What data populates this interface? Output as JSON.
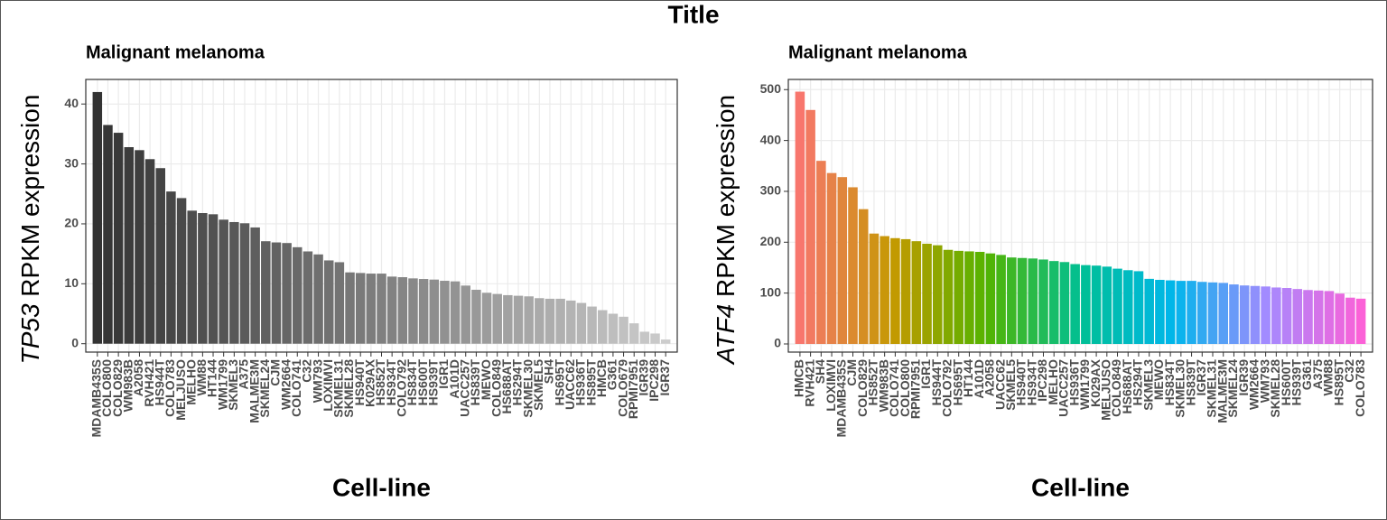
{
  "title": "Title",
  "chart_data": [
    {
      "type": "bar",
      "subtitle": "Malignant melanoma",
      "ylabel_italic": "TP53",
      "ylabel": "RPKM expression",
      "xlabel": "Cell-line",
      "categories": [
        "MDAMB435S",
        "COLO800",
        "COLO829",
        "WM983B",
        "A2058",
        "RVH421",
        "HS944T",
        "COLO783",
        "MELJUSO",
        "MELHO",
        "WM88",
        "HT144",
        "WM1799",
        "SKMEL3",
        "A375",
        "MALME3M",
        "SKMEL24",
        "CJM",
        "WM2664",
        "COLO741",
        "C32",
        "WM793",
        "LOXIMVI",
        "SKMEL31",
        "SKMEL28",
        "HS940T",
        "K029AX",
        "HS852T",
        "HS934T",
        "COLO792",
        "HS834T",
        "HS600T",
        "HS939T",
        "IGR1",
        "A101D",
        "UACC257",
        "HS839T",
        "MEWO",
        "COLO849",
        "HS688AT",
        "HS294T",
        "SKMEL30",
        "SKMEL5",
        "SH4",
        "HS695T",
        "UACC62",
        "HS936T",
        "HS895T",
        "HMCB",
        "G361",
        "COLO679",
        "RPMI7951",
        "IGR39",
        "IPC298",
        "IGR37"
      ],
      "values": [
        42,
        36.5,
        35.2,
        32.8,
        32.3,
        30.8,
        29.3,
        25.4,
        24.3,
        22.2,
        21.8,
        21.6,
        20.7,
        20.3,
        20.1,
        19.4,
        17.1,
        16.9,
        16.8,
        16.1,
        15.4,
        14.9,
        13.9,
        13.6,
        11.9,
        11.8,
        11.7,
        11.7,
        11.2,
        11.1,
        10.9,
        10.8,
        10.7,
        10.5,
        10.4,
        9.7,
        9.0,
        8.5,
        8.3,
        8.1,
        8.0,
        7.9,
        7.6,
        7.5,
        7.5,
        7.2,
        6.8,
        6.2,
        5.6,
        5.0,
        4.5,
        3.4,
        2.0,
        1.7,
        0.7
      ],
      "color_stops": [
        "#333333",
        "#cccccc"
      ],
      "ylim": [
        -1.4,
        44.1
      ],
      "yticks": [
        0,
        10,
        20,
        30,
        40
      ],
      "grid": true
    },
    {
      "type": "bar",
      "subtitle": "Malignant melanoma",
      "ylabel_italic": "ATF4",
      "ylabel": "RPKM expression",
      "xlabel": "Cell-line",
      "categories": [
        "HMCB",
        "RVH421",
        "SH4",
        "LOXIMVI",
        "MDAMB435S",
        "CJM",
        "COLO829",
        "HS852T",
        "WM983B",
        "COLO741",
        "COLO800",
        "RPMI7951",
        "IGR1",
        "HS944T",
        "COLO792",
        "HS695T",
        "HT144",
        "A101D",
        "A2058",
        "UACC62",
        "SKMEL5",
        "HS940T",
        "HS934T",
        "IPC298",
        "MELHO",
        "UACC257",
        "HS936T",
        "WM1799",
        "K029AX",
        "MELJUSO",
        "COLO849",
        "HS688AT",
        "HS294T",
        "SKMEL3",
        "MEWO",
        "HS834T",
        "SKMEL30",
        "HS839T",
        "IGR37",
        "SKMEL31",
        "MALME3M",
        "SKMEL24",
        "IGR39",
        "WM2664",
        "WM793",
        "SKMEL28",
        "HS600T",
        "HS939T",
        "G361",
        "A375",
        "WM88",
        "HS895T",
        "C32",
        "COLO783"
      ],
      "values": [
        496,
        460,
        360,
        336,
        328,
        308,
        265,
        217,
        212,
        208,
        206,
        202,
        197,
        194,
        185,
        183,
        182,
        181,
        178,
        175,
        170,
        169,
        168,
        166,
        163,
        161,
        157,
        155,
        154,
        152,
        148,
        145,
        143,
        128,
        126,
        125,
        124,
        124,
        122,
        121,
        120,
        117,
        115,
        114,
        113,
        111,
        110,
        108,
        106,
        105,
        104,
        99,
        91,
        89
      ],
      "color_stops": [
        "#f8766d",
        "#c49a00",
        "#53b400",
        "#00c094",
        "#00b6eb",
        "#a58aff",
        "#fb61d7"
      ],
      "ylim": [
        -16,
        520
      ],
      "yticks": [
        0,
        100,
        200,
        300,
        400,
        500
      ],
      "grid": true
    }
  ]
}
